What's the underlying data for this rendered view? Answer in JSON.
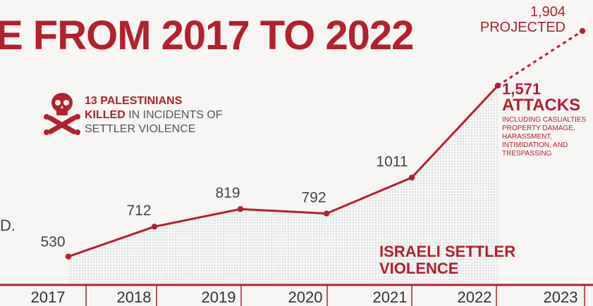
{
  "title": "E FROM 2017 TO 2022",
  "side_fragment": "D.",
  "killed_note": {
    "headline": "13 PALESTINIANS",
    "killed_word": "KILLED",
    "rest": " IN INCIDENTS OF",
    "line3": "SETTLER VIOLENCE"
  },
  "annotation": {
    "value": "1,571",
    "word": "ATTACKS",
    "description": "INCLUDING CASUALTIES\nPROPERTY DAMAGE,\nHARASSMENT,\nINTIMIDATION, AND\nTRESPASSING"
  },
  "projection": {
    "value": "1,904",
    "label": "PROJECTED"
  },
  "colors": {
    "accent": "#b3202e",
    "axis": "#b3202e",
    "text": "#444444",
    "background": "#f7f6f4"
  },
  "icons": [
    "skull-crossbones-icon"
  ],
  "chart_data": {
    "type": "line",
    "series_label": "ISRAELI SETTLER\nVIOLENCE",
    "categories": [
      "2017",
      "2018",
      "2019",
      "2020",
      "2021",
      "2022",
      "2023"
    ],
    "series": [
      {
        "x": [
          "2017",
          "2018",
          "2019",
          "2020",
          "2021",
          "2022"
        ],
        "values": [
          530,
          712,
          819,
          792,
          1011,
          1571
        ],
        "labels": [
          "530",
          "712",
          "819",
          "792",
          "1011",
          ""
        ],
        "style": "solid"
      },
      {
        "x": [
          "2022",
          "2023"
        ],
        "values": [
          1571,
          1904
        ],
        "style": "dashed"
      }
    ],
    "ylim": [
      430,
      1904
    ],
    "grid": false,
    "area_fill": "dotted"
  }
}
